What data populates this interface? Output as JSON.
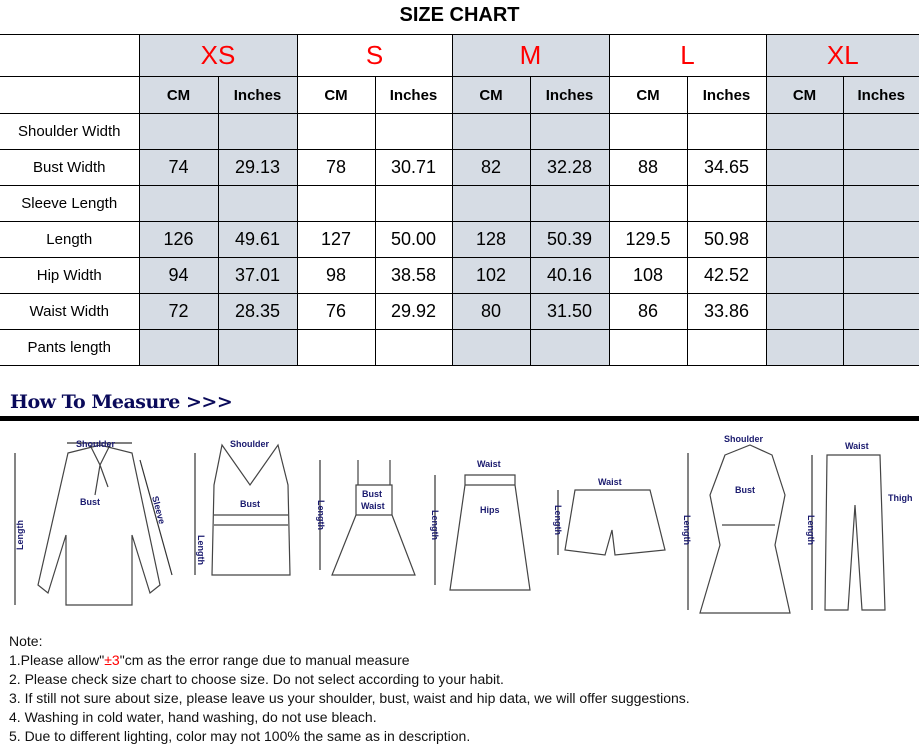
{
  "title": "SIZE CHART",
  "sizes": [
    "XS",
    "S",
    "M",
    "L",
    "XL"
  ],
  "units": {
    "cm": "CM",
    "inches": "Inches"
  },
  "rows": [
    {
      "label": "Shoulder Width",
      "values": [
        "",
        "",
        "",
        "",
        "",
        "",
        "",
        "",
        "",
        ""
      ]
    },
    {
      "label": "Bust Width",
      "values": [
        "74",
        "29.13",
        "78",
        "30.71",
        "82",
        "32.28",
        "88",
        "34.65",
        "",
        ""
      ]
    },
    {
      "label": "Sleeve Length",
      "values": [
        "",
        "",
        "",
        "",
        "",
        "",
        "",
        "",
        "",
        ""
      ]
    },
    {
      "label": "Length",
      "values": [
        "126",
        "49.61",
        "127",
        "50.00",
        "128",
        "50.39",
        "129.5",
        "50.98",
        "",
        ""
      ]
    },
    {
      "label": "Hip Width",
      "values": [
        "94",
        "37.01",
        "98",
        "38.58",
        "102",
        "40.16",
        "108",
        "42.52",
        "",
        ""
      ]
    },
    {
      "label": "Waist Width",
      "values": [
        "72",
        "28.35",
        "76",
        "29.92",
        "80",
        "31.50",
        "86",
        "33.86",
        "",
        ""
      ]
    },
    {
      "label": "Pants length",
      "values": [
        "",
        "",
        "",
        "",
        "",
        "",
        "",
        "",
        "",
        ""
      ]
    }
  ],
  "how_to_measure": "How To Measure >>>",
  "figure_labels": {
    "shoulder": "Shoulder",
    "bust": "Bust",
    "sleeve": "Sleeve",
    "length": "Length",
    "waist": "Waist",
    "hips": "Hips",
    "thigh": "Thigh"
  },
  "notes": {
    "heading": "Note:",
    "n1_pre": "1.Please allow\"",
    "n1_red": "±3",
    "n1_post": "\"cm as the error range due to manual measure",
    "n2": "2. Please check size chart to choose size. Do not select according to your habit.",
    "n3": "3. If still not sure about size, please leave us your shoulder, bust, waist and hip data, we will offer suggestions.",
    "n4": "4. Washing in cold water, hand washing, do not use bleach.",
    "n5": "5. Due to different lighting, color may not 100% the same as in description."
  },
  "colors": {
    "size_label": "#ff0000",
    "shaded": "#d6dce4",
    "measure_heading": "#0a0a5a"
  }
}
